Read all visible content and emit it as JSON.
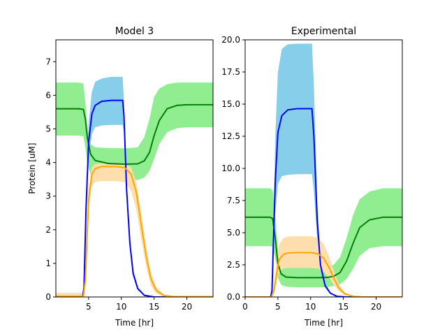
{
  "chart_data": [
    {
      "type": "line",
      "title": "Model 3",
      "xlabel": "Time [hr]",
      "ylabel": "Protein [uM]",
      "xlim": [
        0,
        24
      ],
      "ylim": [
        0,
        7.65
      ],
      "xticks": [
        5,
        10,
        15,
        20
      ],
      "yticks": [
        0,
        1,
        2,
        3,
        4,
        5,
        6,
        7
      ],
      "grid": false,
      "series": [
        {
          "color": "#008000",
          "band_color": "#90ee90",
          "x": [
            0,
            3.5,
            4.2,
            4.5,
            4.8,
            5.3,
            6,
            8,
            10.5,
            12.5,
            13.5,
            14.3,
            15,
            15.8,
            17,
            18.5,
            20,
            24
          ],
          "y": [
            5.6,
            5.6,
            5.58,
            5.3,
            4.75,
            4.25,
            4.06,
            3.97,
            3.95,
            3.96,
            4.05,
            4.3,
            4.8,
            5.25,
            5.6,
            5.7,
            5.72,
            5.72
          ],
          "upper": [
            6.38,
            6.38,
            6.35,
            5.8,
            5.0,
            4.55,
            4.45,
            4.43,
            4.42,
            4.45,
            4.75,
            5.3,
            5.95,
            6.2,
            6.33,
            6.38,
            6.38,
            6.38
          ],
          "lower": [
            4.8,
            4.8,
            4.78,
            4.45,
            4.0,
            3.65,
            3.52,
            3.48,
            3.47,
            3.48,
            3.55,
            3.75,
            4.1,
            4.55,
            4.9,
            5.02,
            5.05,
            5.05
          ]
        },
        {
          "color": "#0000ff",
          "band_color": "#87ceeb",
          "x": [
            0,
            4.1,
            4.3,
            4.6,
            5.0,
            5.5,
            6.0,
            7.0,
            8.5,
            10.2,
            10.4,
            10.8,
            11.3,
            11.8,
            12.5,
            13.5,
            15,
            24
          ],
          "y": [
            0,
            0,
            0.3,
            2.6,
            4.6,
            5.45,
            5.7,
            5.82,
            5.85,
            5.85,
            5.4,
            3.2,
            1.6,
            0.7,
            0.25,
            0.05,
            0,
            0
          ],
          "upper": [
            0,
            0,
            0.3,
            2.8,
            5.2,
            6.1,
            6.4,
            6.5,
            6.55,
            6.55,
            5.8,
            3.4,
            1.7,
            0.8,
            0.3,
            0.05,
            0,
            0
          ],
          "lower": [
            0,
            0,
            0.3,
            2.4,
            4.1,
            4.85,
            5.05,
            5.1,
            5.12,
            5.12,
            4.9,
            3.0,
            1.5,
            0.6,
            0.2,
            0.05,
            0,
            0
          ]
        },
        {
          "color": "#ffa500",
          "band_color": "#ffdead",
          "x": [
            0,
            4.2,
            4.5,
            5.0,
            5.5,
            6.0,
            7.0,
            9.0,
            10.5,
            11.5,
            12.3,
            13.0,
            13.8,
            14.5,
            15.3,
            16.5,
            18,
            24
          ],
          "y": [
            0.02,
            0.02,
            0.5,
            2.9,
            3.65,
            3.82,
            3.88,
            3.88,
            3.85,
            3.65,
            3.1,
            2.2,
            1.2,
            0.55,
            0.2,
            0.04,
            0.01,
            0.01
          ],
          "upper": [
            0.12,
            0.12,
            0.7,
            3.2,
            3.85,
            3.95,
            3.98,
            3.98,
            3.97,
            3.85,
            3.4,
            2.55,
            1.5,
            0.75,
            0.3,
            0.08,
            0.03,
            0.03
          ],
          "lower": [
            0,
            0,
            0.3,
            2.6,
            3.3,
            3.42,
            3.45,
            3.45,
            3.42,
            3.15,
            2.6,
            1.75,
            0.9,
            0.35,
            0.1,
            0.01,
            0,
            0
          ]
        }
      ]
    },
    {
      "type": "line",
      "title": "Experimental",
      "xlabel": "Time [hr]",
      "ylabel": "",
      "xlim": [
        0,
        24
      ],
      "ylim": [
        0,
        20
      ],
      "xticks": [
        0,
        5,
        10,
        15,
        20
      ],
      "yticks": [
        0.0,
        2.5,
        5.0,
        7.5,
        10.0,
        12.5,
        15.0,
        17.5,
        20.0
      ],
      "grid": false,
      "series": [
        {
          "color": "#008000",
          "band_color": "#90ee90",
          "x": [
            0,
            3.8,
            4.2,
            4.6,
            5.0,
            5.5,
            6.2,
            8,
            11,
            12.5,
            13.5,
            14.5,
            15.5,
            16.5,
            17.5,
            19,
            21,
            24
          ],
          "y": [
            6.2,
            6.2,
            6.1,
            4.6,
            2.6,
            1.8,
            1.55,
            1.5,
            1.5,
            1.52,
            1.6,
            1.9,
            2.8,
            4.2,
            5.4,
            6.0,
            6.2,
            6.2
          ],
          "upper": [
            8.45,
            8.45,
            8.3,
            6.2,
            3.7,
            2.7,
            2.35,
            2.3,
            2.3,
            2.35,
            2.5,
            3.1,
            4.6,
            6.4,
            7.6,
            8.2,
            8.45,
            8.45
          ],
          "lower": [
            3.95,
            3.95,
            3.9,
            3.0,
            1.5,
            0.95,
            0.8,
            0.75,
            0.75,
            0.77,
            0.85,
            1.0,
            1.4,
            2.2,
            3.2,
            3.8,
            3.95,
            3.95
          ]
        },
        {
          "color": "#0000ff",
          "band_color": "#87ceeb",
          "x": [
            0,
            3.9,
            4.1,
            4.3,
            4.6,
            5.0,
            5.6,
            6.5,
            8,
            10.2,
            10.5,
            11.0,
            11.5,
            12.2,
            13.0,
            14.0,
            15.5,
            24
          ],
          "y": [
            0,
            0,
            0.5,
            4.0,
            9.0,
            12.8,
            14.1,
            14.55,
            14.65,
            14.65,
            12.5,
            6.0,
            2.5,
            0.9,
            0.3,
            0.05,
            0,
            0
          ],
          "upper": [
            0,
            0,
            0.5,
            5.5,
            12.5,
            17.5,
            19.3,
            19.65,
            19.7,
            19.7,
            16.5,
            7.5,
            3.0,
            1.1,
            0.35,
            0.05,
            0,
            0
          ],
          "lower": [
            0,
            0,
            0.5,
            3.0,
            6.5,
            8.8,
            9.4,
            9.5,
            9.55,
            9.55,
            8.2,
            4.5,
            2.0,
            0.7,
            0.25,
            0.05,
            0,
            0
          ]
        },
        {
          "color": "#ffa500",
          "band_color": "#ffdead",
          "x": [
            0,
            4.0,
            4.4,
            4.8,
            5.2,
            5.8,
            6.5,
            8,
            10,
            11.2,
            12.0,
            12.8,
            13.5,
            14.3,
            15.2,
            16.5,
            18,
            24
          ],
          "y": [
            0,
            0,
            0.5,
            1.8,
            2.9,
            3.3,
            3.42,
            3.45,
            3.45,
            3.35,
            3.0,
            2.3,
            1.5,
            0.7,
            0.25,
            0.05,
            0,
            0
          ],
          "upper": [
            0,
            0,
            0.8,
            2.8,
            4.1,
            4.55,
            4.7,
            4.72,
            4.72,
            4.6,
            4.1,
            3.2,
            2.1,
            1.0,
            0.35,
            0.08,
            0,
            0
          ],
          "lower": [
            0,
            0,
            0.3,
            1.2,
            1.9,
            2.2,
            2.25,
            2.25,
            2.25,
            2.2,
            1.95,
            1.5,
            0.95,
            0.45,
            0.15,
            0.03,
            0,
            0
          ]
        }
      ]
    }
  ]
}
